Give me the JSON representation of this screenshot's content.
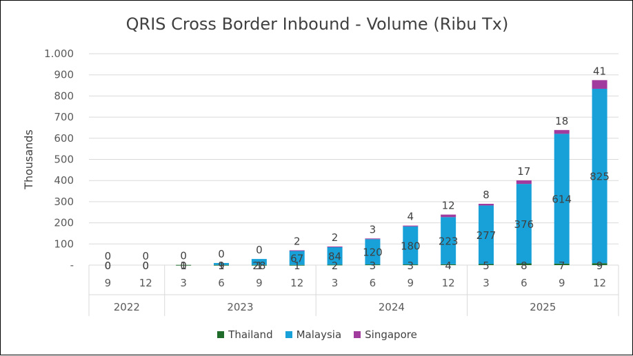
{
  "chart_data": {
    "type": "bar",
    "stacked": true,
    "title": "QRIS Cross Border Inbound - Volume (Ribu Tx)",
    "ylabel": "Thousands",
    "ylim": [
      0,
      1000
    ],
    "yticks": [
      "-",
      "100",
      "200",
      "300",
      "400",
      "500",
      "600",
      "700",
      "800",
      "900",
      "1.000"
    ],
    "yticks_values": [
      0,
      100,
      200,
      300,
      400,
      500,
      600,
      700,
      800,
      900,
      1000
    ],
    "categories": [
      "9",
      "12",
      "3",
      "6",
      "9",
      "12",
      "3",
      "6",
      "9",
      "12",
      "3",
      "6",
      "9",
      "12"
    ],
    "groups": [
      {
        "label": "2022",
        "count": 2
      },
      {
        "label": "2023",
        "count": 4
      },
      {
        "label": "2024",
        "count": 4
      },
      {
        "label": "2025",
        "count": 4
      }
    ],
    "series": [
      {
        "name": "Thailand",
        "color": "#1e6b2a",
        "values": [
          0,
          0,
          1,
          1,
          1,
          1,
          2,
          3,
          3,
          4,
          5,
          8,
          7,
          9
        ]
      },
      {
        "name": "Malaysia",
        "color": "#17a1d8",
        "values": [
          0,
          0,
          0,
          9,
          28,
          67,
          84,
          120,
          180,
          223,
          277,
          376,
          614,
          825
        ]
      },
      {
        "name": "Singapore",
        "color": "#a23b9e",
        "values": [
          0,
          0,
          0,
          0,
          0,
          2,
          2,
          3,
          4,
          12,
          8,
          17,
          18,
          41
        ]
      }
    ],
    "legend_position": "bottom",
    "grid": true
  }
}
